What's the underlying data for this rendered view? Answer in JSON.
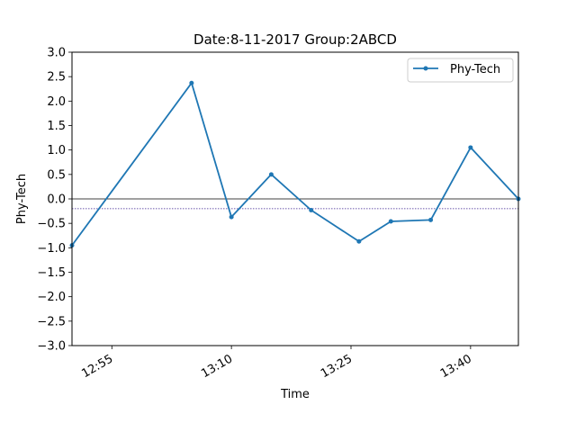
{
  "chart_data": {
    "type": "line",
    "title": "Date:8-11-2017 Group:2ABCD",
    "xlabel": "Time",
    "ylabel": "Phy-Tech",
    "xlim": [
      "12:50",
      "13:46"
    ],
    "ylim": [
      -3.0,
      3.0
    ],
    "x_ticks": [
      "12:55",
      "13:10",
      "13:25",
      "13:40"
    ],
    "y_ticks": [
      "3.0",
      "2.5",
      "2.0",
      "1.5",
      "1.0",
      "0.5",
      "0.0",
      "−0.5",
      "−1.0",
      "−1.5",
      "−2.0",
      "−2.5",
      "−3.0"
    ],
    "y_tick_values": [
      3.0,
      2.5,
      2.0,
      1.5,
      1.0,
      0.5,
      0.0,
      -0.5,
      -1.0,
      -1.5,
      -2.0,
      -2.5,
      -3.0
    ],
    "series": [
      {
        "name": "Phy-Tech",
        "color": "#1f77b4",
        "marker": "dot",
        "x": [
          "12:50",
          "13:05",
          "13:10",
          "13:15",
          "13:20",
          "13:26",
          "13:30",
          "13:35",
          "13:40",
          "13:46"
        ],
        "y": [
          -0.95,
          2.37,
          -0.37,
          0.5,
          -0.23,
          -0.87,
          -0.46,
          -0.43,
          1.05,
          0.0
        ]
      }
    ],
    "reference_lines": [
      {
        "y": 0.0,
        "color": "#000000",
        "style": "solid"
      },
      {
        "y": -0.2,
        "color": "#3a1f8f",
        "style": "dotted"
      }
    ],
    "grid": false,
    "legend_position": "top-right"
  }
}
